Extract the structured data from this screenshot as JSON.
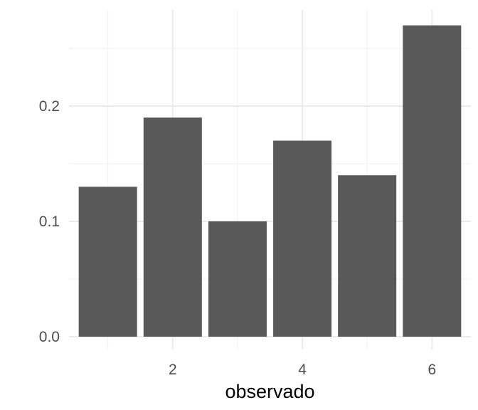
{
  "chart_data": {
    "type": "bar",
    "x": [
      1,
      2,
      3,
      4,
      5,
      6
    ],
    "values": [
      0.13,
      0.19,
      0.1,
      0.17,
      0.14,
      0.27
    ],
    "xlabel": "observado",
    "ylabel": "",
    "x_ticks": [
      2,
      4,
      6
    ],
    "x_tick_labels": [
      "2",
      "4",
      "6"
    ],
    "y_ticks": [
      0.0,
      0.1,
      0.2
    ],
    "y_tick_labels": [
      "0.0",
      "0.1",
      "0.2"
    ],
    "xlim": [
      0.4,
      6.6
    ],
    "ylim": [
      0,
      0.285
    ],
    "grid": true,
    "bar_color": "#595959",
    "grid_color": "#ebebeb",
    "background": "#ffffff"
  }
}
